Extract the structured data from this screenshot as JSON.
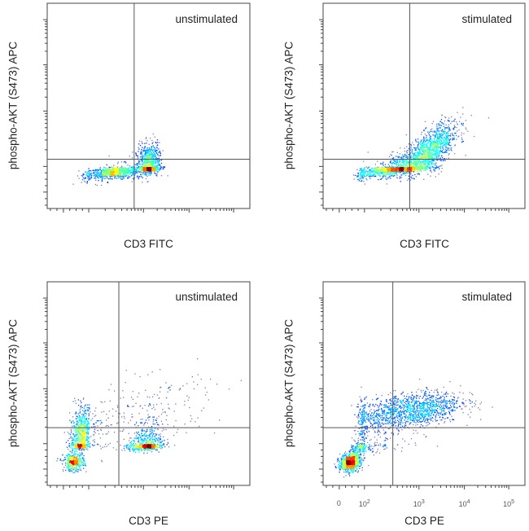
{
  "chart_data": [
    {
      "type": "scatter",
      "subtype": "flow cytometry density plot",
      "title": "unstimulated",
      "xlabel": "CD3 FITC",
      "ylabel": "phospho-AKT (S473) APC",
      "scale": "biexponential (log10 units)",
      "quadrant_gate": {
        "x": 2.83,
        "y": 2.13
      },
      "populations": [
        {
          "x": 2.46,
          "y": 1.6,
          "sx": 0.22,
          "sy": 0.2,
          "rho": 0.3,
          "n": 700
        },
        {
          "x": 3.1,
          "y": 2.0,
          "sx": 0.12,
          "sy": 0.2,
          "rho": 0.1,
          "n": 900
        },
        {
          "x": 2.4,
          "y": 1.3,
          "sx": 0.5,
          "sy": 0.3,
          "rho": 0.2,
          "n": 150
        }
      ]
    },
    {
      "type": "scatter",
      "subtype": "flow cytometry density plot",
      "title": "stimulated",
      "xlabel": "CD3 FITC",
      "ylabel": "phospho-AKT (S473) APC",
      "scale": "biexponential (log10 units)",
      "quadrant_gate": {
        "x": 2.83,
        "y": 2.13
      },
      "populations": [
        {
          "x": 2.65,
          "y": 1.9,
          "sx": 0.3,
          "sy": 0.22,
          "rho": 0.6,
          "n": 900
        },
        {
          "x": 3.25,
          "y": 2.3,
          "sx": 0.3,
          "sy": 0.25,
          "rho": 0.7,
          "n": 1100
        },
        {
          "x": 2.3,
          "y": 1.5,
          "sx": 0.5,
          "sy": 0.3,
          "rho": 0.3,
          "n": 250
        }
      ]
    },
    {
      "type": "scatter",
      "subtype": "flow cytometry density plot",
      "title": "unstimulated",
      "xlabel": "CD3 PE",
      "ylabel": "phospho-AKT (S473) APC",
      "scale": "biexponential (log10 units)",
      "quadrant_gate": {
        "x": 2.55,
        "y": 2.29
      },
      "populations": [
        {
          "x": 1.4,
          "y": 2.15,
          "sx": 0.45,
          "sy": 0.25,
          "rho": 0.2,
          "n": 700
        },
        {
          "x": 0.8,
          "y": 0.6,
          "sx": 0.4,
          "sy": 0.35,
          "rho": 0.0,
          "n": 400
        },
        {
          "x": 3.06,
          "y": 1.92,
          "sx": 0.18,
          "sy": 0.22,
          "rho": 0.2,
          "n": 600
        },
        {
          "x": 3.0,
          "y": 2.6,
          "sx": 0.8,
          "sy": 0.35,
          "rho": 0.3,
          "n": 200
        }
      ]
    },
    {
      "type": "scatter",
      "subtype": "flow cytometry density plot",
      "title": "stimulated",
      "xlabel": "CD3 PE",
      "ylabel": "phospho-AKT (S473) APC",
      "scale": "biexponential (log10 units)",
      "x_ticks": [
        {
          "value": 0,
          "label": "0"
        },
        {
          "value": 2,
          "label": "10",
          "exp": "2"
        },
        {
          "value": 3,
          "label": "10",
          "exp": "3"
        },
        {
          "value": 4,
          "label": "10",
          "exp": "4"
        },
        {
          "value": 5,
          "label": "10",
          "exp": "5"
        }
      ],
      "quadrant_gate": {
        "x": 2.52,
        "y": 2.29
      },
      "populations": [
        {
          "x": 0.85,
          "y": 0.58,
          "sx": 0.4,
          "sy": 0.35,
          "rho": 0.2,
          "n": 800
        },
        {
          "x": 2.8,
          "y": 2.6,
          "sx": 0.55,
          "sy": 0.18,
          "rho": 0.4,
          "n": 1300
        },
        {
          "x": 1.8,
          "y": 1.8,
          "sx": 0.5,
          "sy": 0.4,
          "rho": 0.5,
          "n": 300
        }
      ]
    }
  ]
}
